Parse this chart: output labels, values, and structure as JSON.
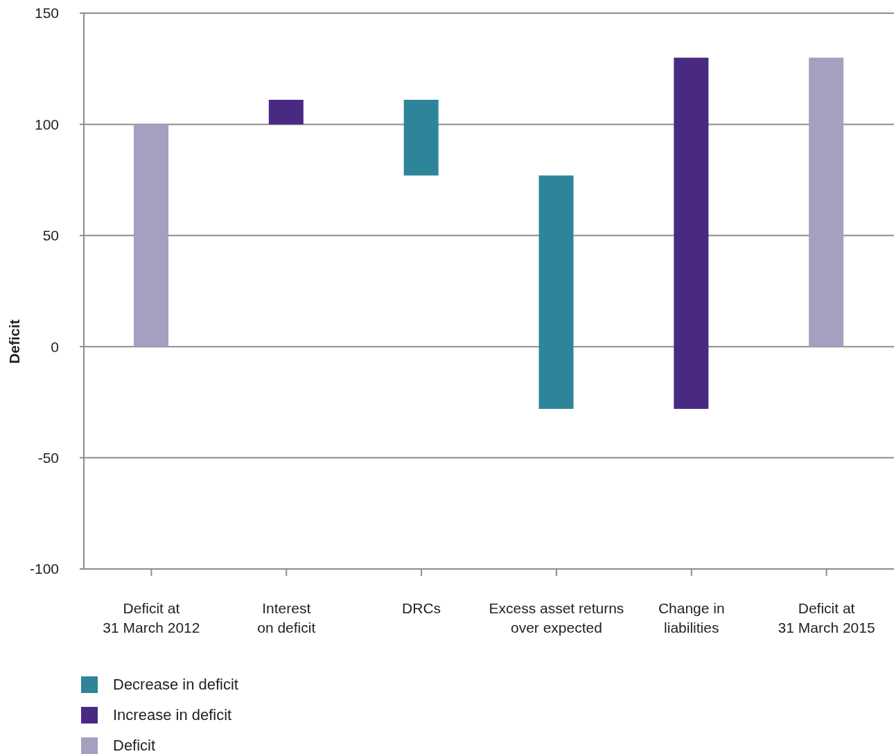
{
  "chart_data": {
    "type": "bar",
    "ylabel": "Deficit",
    "categories": [
      "Deficit at\n31 March 2012",
      "Interest\non deficit",
      "DRCs",
      "Excess asset returns\nover expected",
      "Change in\nliabilities",
      "Deficit at\n31 March 2015"
    ],
    "series": [
      {
        "name": "Decrease in deficit",
        "color": "#2e8599",
        "values": [
          null,
          null,
          -34,
          -105,
          null,
          null
        ],
        "base": [
          null,
          null,
          111,
          77,
          null,
          null
        ]
      },
      {
        "name": "Increase in deficit",
        "color": "#482a83",
        "values": [
          null,
          11,
          null,
          null,
          158,
          null
        ],
        "base": [
          null,
          100,
          null,
          null,
          -28,
          null
        ]
      },
      {
        "name": "Deficit",
        "color": "#a69fc0",
        "values": [
          100,
          null,
          null,
          null,
          null,
          130
        ],
        "base": [
          0,
          null,
          null,
          null,
          null,
          0
        ]
      }
    ],
    "ylim": [
      -100,
      150
    ],
    "yticks": [
      -100,
      -50,
      0,
      50,
      100,
      150
    ],
    "grid": "y",
    "legend": "bottom left"
  }
}
